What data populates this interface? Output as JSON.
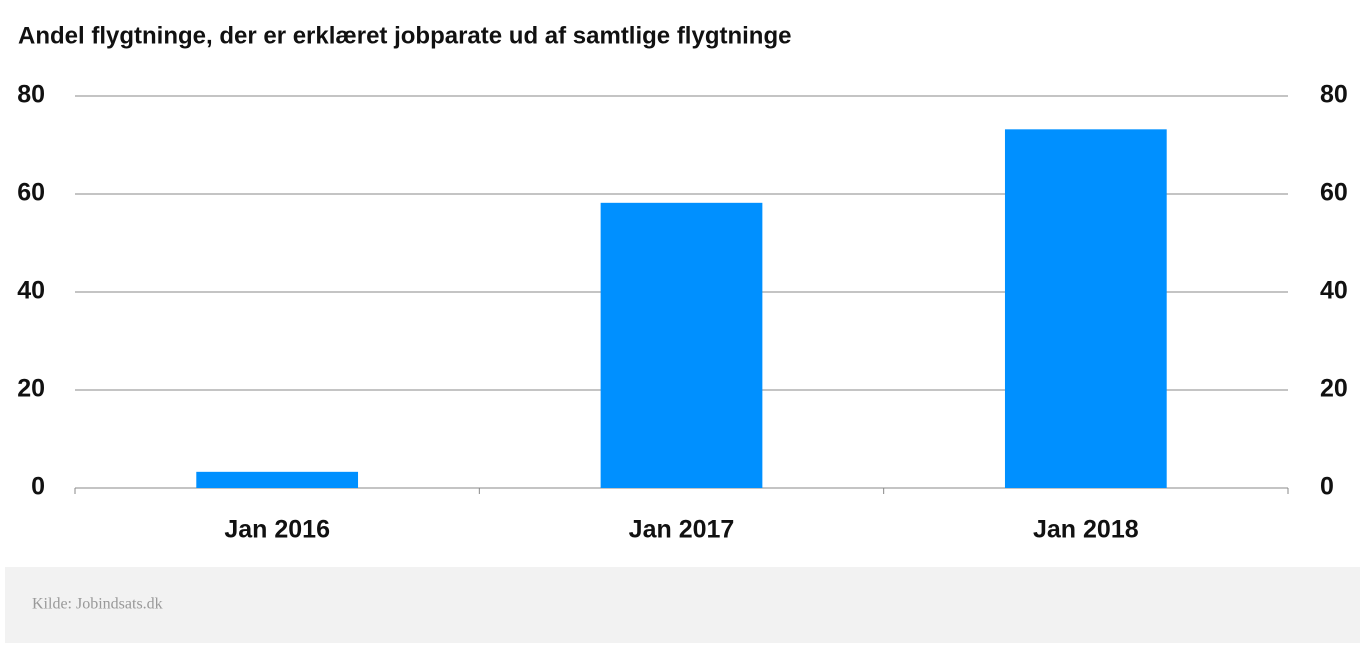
{
  "chart_data": {
    "type": "bar",
    "title": "Andel flygtninge, der er erklæret jobparate ud af samtlige flygtninge",
    "categories": [
      "Jan 2016",
      "Jan 2017",
      "Jan 2018"
    ],
    "values": [
      3.3,
      58.2,
      73.2
    ],
    "color": "#0090ff",
    "ylim": [
      0,
      80
    ],
    "yticks": [
      0,
      20,
      40,
      60,
      80
    ],
    "y2lim": [
      0,
      80
    ],
    "y2ticks": [
      0,
      20,
      40,
      60,
      80
    ],
    "grid": true,
    "source": "Kilde: Jobindsats.dk"
  }
}
